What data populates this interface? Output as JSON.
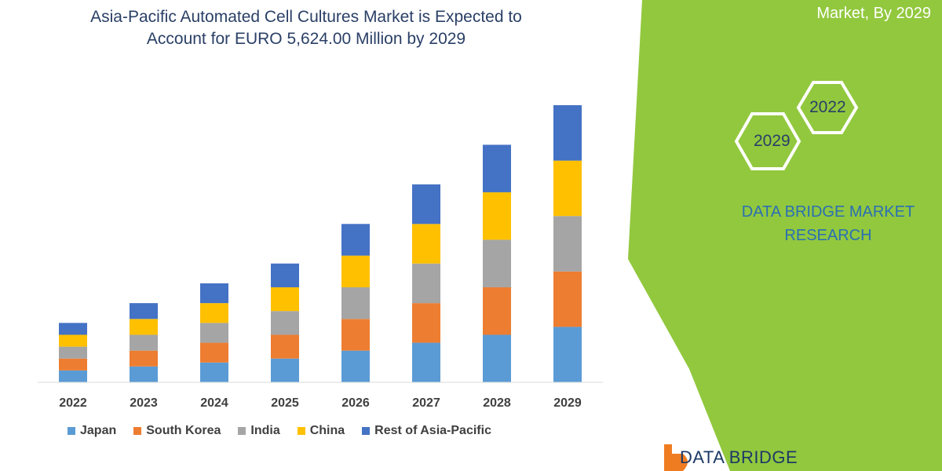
{
  "title": {
    "line1": "Asia-Pacific Automated Cell Cultures Market is Expected to",
    "line2": "Account for EURO 5,624.00 Million by 2029"
  },
  "corner_text": "Market, By 2029",
  "hexagons": {
    "left": "2029",
    "right": "2022"
  },
  "brand": {
    "line1": "DATA BRIDGE MARKET",
    "line2": "RESEARCH"
  },
  "logo_text": "DATA BRIDGE",
  "colors": {
    "japan": "#5b9bd5",
    "south_korea": "#ed7d31",
    "india": "#a5a5a5",
    "china": "#ffc000",
    "rest": "#4472c4",
    "green_panel": "#92c83e"
  },
  "chart_data": {
    "type": "bar",
    "stacked": true,
    "categories": [
      "2022",
      "2023",
      "2024",
      "2025",
      "2026",
      "2027",
      "2028",
      "2029"
    ],
    "series": [
      {
        "name": "Japan",
        "values": [
          15,
          20,
          25,
          30,
          40,
          50,
          60,
          70
        ]
      },
      {
        "name": "South Korea",
        "values": [
          15,
          20,
          25,
          30,
          40,
          50,
          60,
          70
        ]
      },
      {
        "name": "India",
        "values": [
          15,
          20,
          25,
          30,
          40,
          50,
          60,
          70
        ]
      },
      {
        "name": "China",
        "values": [
          15,
          20,
          25,
          30,
          40,
          50,
          60,
          70
        ]
      },
      {
        "name": "Rest of Asia-Pacific",
        "values": [
          15,
          20,
          25,
          30,
          40,
          50,
          60,
          70
        ]
      }
    ],
    "ylim": [
      0,
      350
    ],
    "grid": false,
    "legend_position": "bottom"
  }
}
